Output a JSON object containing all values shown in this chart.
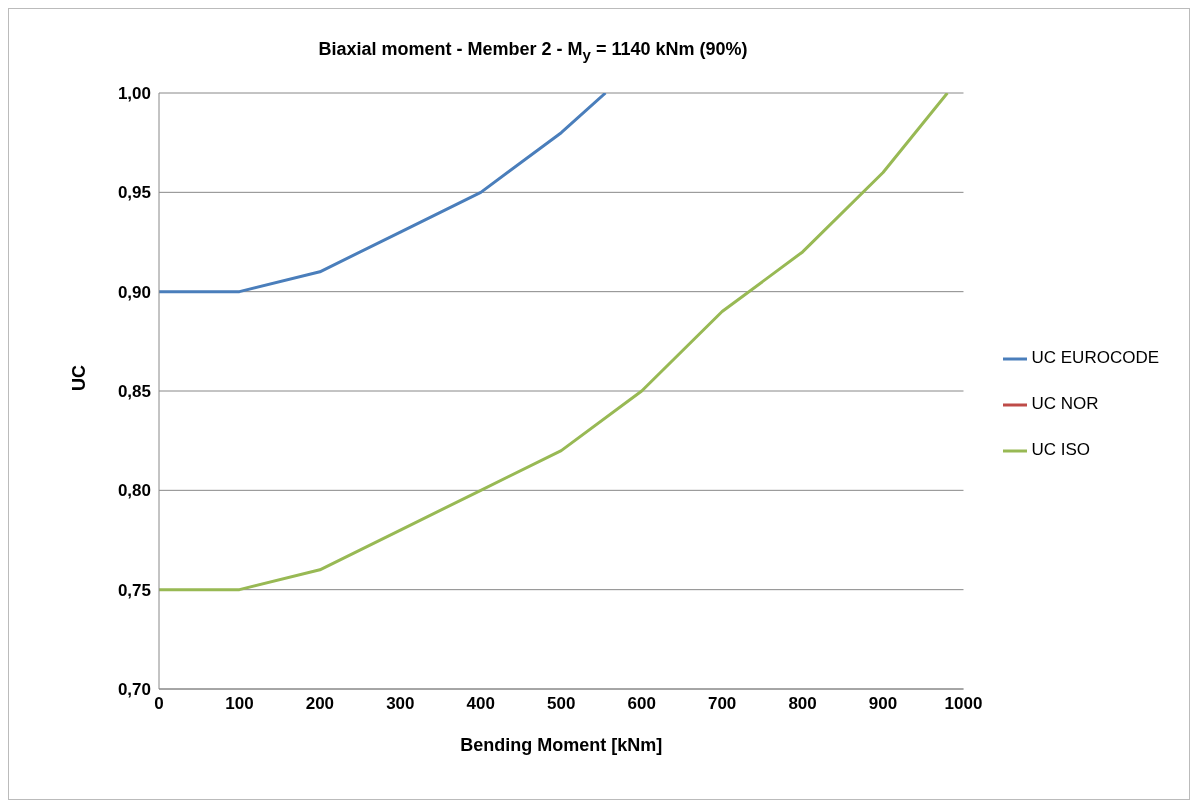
{
  "chart_data": {
    "type": "line",
    "title": "Biaxial moment  - Member  2 -  M$_{y}$ = 1140 kNm (90%)",
    "xlabel": "Bending Moment [kNm]",
    "ylabel": "UC",
    "xlim": [
      0,
      1000
    ],
    "xticks": [
      0,
      100,
      200,
      300,
      400,
      500,
      600,
      700,
      800,
      900,
      1000
    ],
    "ylim": [
      0.7,
      1.0
    ],
    "yticks": [
      {
        "value": 0.7,
        "label": "0,70"
      },
      {
        "value": 0.75,
        "label": "0,75"
      },
      {
        "value": 0.8,
        "label": "0,80"
      },
      {
        "value": 0.85,
        "label": "0,85"
      },
      {
        "value": 0.9,
        "label": "0,90"
      },
      {
        "value": 0.95,
        "label": "0,95"
      },
      {
        "value": 1.0,
        "label": "1,00"
      }
    ],
    "grid": "y",
    "legend": "right",
    "marker": "none",
    "line_style": "solid",
    "series": [
      {
        "name": "UC EUROCODE",
        "color": "#4a7ebb",
        "x": [
          0,
          100,
          200,
          300,
          400,
          500,
          555
        ],
        "values": [
          0.9,
          0.9,
          0.91,
          0.93,
          0.95,
          0.98,
          1.0
        ]
      },
      {
        "name": "UC NOR",
        "color": "#be4b48",
        "values": [
          null
        ]
      },
      {
        "name": "UC ISO",
        "color": "#98b954",
        "x": [
          0,
          100,
          200,
          300,
          400,
          500,
          600,
          700,
          800,
          900,
          980
        ],
        "values": [
          0.75,
          0.75,
          0.76,
          0.78,
          0.8,
          0.82,
          0.85,
          0.89,
          0.92,
          0.96,
          1.0
        ]
      }
    ]
  }
}
